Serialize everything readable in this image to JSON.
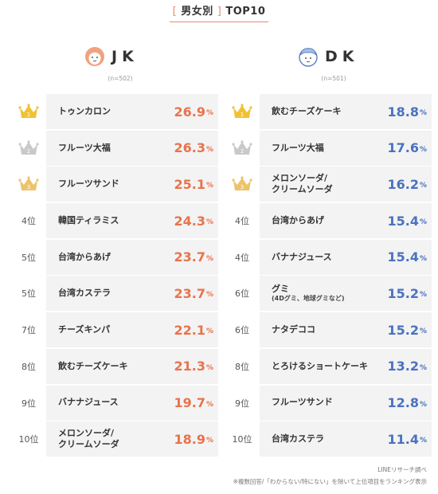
{
  "header": {
    "bracket_open": "[",
    "label": "男女別",
    "bracket_close": "]",
    "suffix": "TOP10"
  },
  "colors": {
    "jk_accent": "#e8734c",
    "dk_accent": "#4a72c0",
    "gold": "#f0c233",
    "silver": "#c9c9c9",
    "bronze": "#edc36a"
  },
  "chart_data": [
    {
      "type": "table",
      "group": "JK",
      "n": "(n=502)",
      "icon": "girl-face-icon",
      "rows": [
        {
          "rank": "1",
          "rank_icon": "gold-crown-icon",
          "item": "トゥンカロン",
          "sub": "",
          "value": 26.9,
          "value_text": "26.9",
          "unit": "%"
        },
        {
          "rank": "2",
          "rank_icon": "silver-crown-icon",
          "item": "フルーツ大福",
          "sub": "",
          "value": 26.3,
          "value_text": "26.3",
          "unit": "%"
        },
        {
          "rank": "3",
          "rank_icon": "bronze-crown-icon",
          "item": "フルーツサンド",
          "sub": "",
          "value": 25.1,
          "value_text": "25.1",
          "unit": "%"
        },
        {
          "rank": "4位",
          "rank_icon": "",
          "item": "韓国ティラミス",
          "sub": "",
          "value": 24.3,
          "value_text": "24.3",
          "unit": "%"
        },
        {
          "rank": "5位",
          "rank_icon": "",
          "item": "台湾からあげ",
          "sub": "",
          "value": 23.7,
          "value_text": "23.7",
          "unit": "%"
        },
        {
          "rank": "5位",
          "rank_icon": "",
          "item": "台湾カステラ",
          "sub": "",
          "value": 23.7,
          "value_text": "23.7",
          "unit": "%"
        },
        {
          "rank": "7位",
          "rank_icon": "",
          "item": "チーズキンパ",
          "sub": "",
          "value": 22.1,
          "value_text": "22.1",
          "unit": "%"
        },
        {
          "rank": "8位",
          "rank_icon": "",
          "item": "飲むチーズケーキ",
          "sub": "",
          "value": 21.3,
          "value_text": "21.3",
          "unit": "%"
        },
        {
          "rank": "9位",
          "rank_icon": "",
          "item": "バナナジュース",
          "sub": "",
          "value": 19.7,
          "value_text": "19.7",
          "unit": "%"
        },
        {
          "rank": "10位",
          "rank_icon": "",
          "item": "メロンソーダ/\nクリームソーダ",
          "sub": "",
          "value": 18.9,
          "value_text": "18.9",
          "unit": "%"
        }
      ]
    },
    {
      "type": "table",
      "group": "DK",
      "n": "(n=501)",
      "icon": "boy-face-icon",
      "rows": [
        {
          "rank": "1",
          "rank_icon": "gold-crown-icon",
          "item": "飲むチーズケーキ",
          "sub": "",
          "value": 18.8,
          "value_text": "18.8",
          "unit": "%"
        },
        {
          "rank": "2",
          "rank_icon": "silver-crown-icon",
          "item": "フルーツ大福",
          "sub": "",
          "value": 17.6,
          "value_text": "17.6",
          "unit": "%"
        },
        {
          "rank": "3",
          "rank_icon": "bronze-crown-icon",
          "item": "メロンソーダ/\nクリームソーダ",
          "sub": "",
          "value": 16.2,
          "value_text": "16.2",
          "unit": "%"
        },
        {
          "rank": "4位",
          "rank_icon": "",
          "item": "台湾からあげ",
          "sub": "",
          "value": 15.4,
          "value_text": "15.4",
          "unit": "%"
        },
        {
          "rank": "4位",
          "rank_icon": "",
          "item": "バナナジュース",
          "sub": "",
          "value": 15.4,
          "value_text": "15.4",
          "unit": "%"
        },
        {
          "rank": "6位",
          "rank_icon": "",
          "item": "グミ",
          "sub": "(4Dグミ、地球グミなど)",
          "value": 15.2,
          "value_text": "15.2",
          "unit": "%"
        },
        {
          "rank": "6位",
          "rank_icon": "",
          "item": "ナタデココ",
          "sub": "",
          "value": 15.2,
          "value_text": "15.2",
          "unit": "%"
        },
        {
          "rank": "8位",
          "rank_icon": "",
          "item": "とろけるショートケーキ",
          "sub": "",
          "value": 13.2,
          "value_text": "13.2",
          "unit": "%"
        },
        {
          "rank": "9位",
          "rank_icon": "",
          "item": "フルーツサンド",
          "sub": "",
          "value": 12.8,
          "value_text": "12.8",
          "unit": "%"
        },
        {
          "rank": "10位",
          "rank_icon": "",
          "item": "台湾カステラ",
          "sub": "",
          "value": 11.4,
          "value_text": "11.4",
          "unit": "%"
        }
      ]
    }
  ],
  "footer": {
    "source": "LINEリサーチ調べ",
    "note": "※複数回答/「わからない/特にない」を除いて上位項目をランキング表示"
  }
}
